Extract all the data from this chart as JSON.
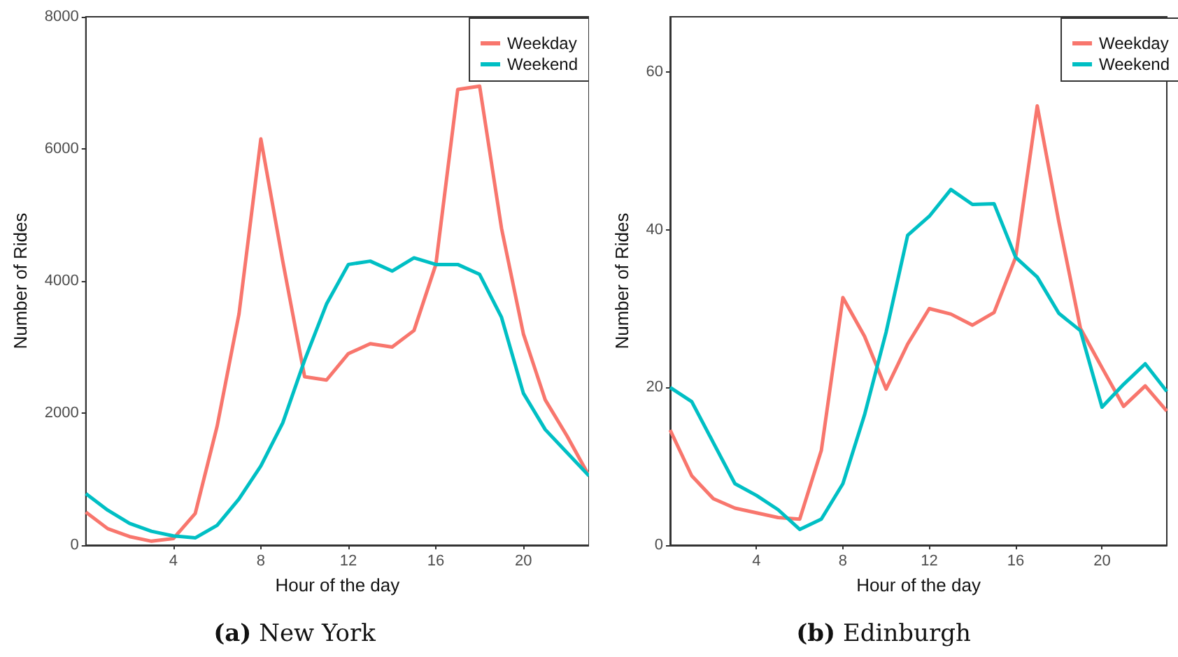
{
  "chart_data": [
    {
      "type": "line",
      "title": "(a) New York",
      "xlabel": "Hour of the day",
      "ylabel": "Number of Rides",
      "x": [
        0,
        1,
        2,
        3,
        4,
        5,
        6,
        7,
        8,
        9,
        10,
        11,
        12,
        13,
        14,
        15,
        16,
        17,
        18,
        19,
        20,
        21,
        22,
        23
      ],
      "xlim": [
        0,
        23
      ],
      "xticks": [
        4,
        8,
        12,
        16,
        20
      ],
      "ylim": [
        0,
        8000
      ],
      "yticks": [
        0,
        2000,
        4000,
        6000,
        8000
      ],
      "grid": false,
      "legend": "top right",
      "marker": "none",
      "line_style": "solid",
      "series": [
        {
          "name": "Weekday",
          "color": "#f8766d",
          "values": [
            500,
            250,
            130,
            60,
            100,
            480,
            1800,
            3500,
            6150,
            4300,
            2550,
            2500,
            2900,
            3050,
            3000,
            3250,
            4250,
            6900,
            6950,
            4800,
            3200,
            2200,
            1650,
            1050
          ]
        },
        {
          "name": "Weekend",
          "color": "#00bfc4",
          "values": [
            780,
            530,
            330,
            210,
            140,
            110,
            300,
            700,
            1200,
            1850,
            2800,
            3650,
            4250,
            4300,
            4150,
            4350,
            4250,
            4250,
            4100,
            3450,
            2300,
            1750,
            1400,
            1050
          ]
        }
      ]
    },
    {
      "type": "line",
      "title": "(b) Edinburgh",
      "xlabel": "Hour of the day",
      "ylabel": "Number of Rides",
      "x": [
        0,
        1,
        2,
        3,
        4,
        5,
        6,
        7,
        8,
        9,
        10,
        11,
        12,
        13,
        14,
        15,
        16,
        17,
        18,
        19,
        20,
        21,
        22,
        23
      ],
      "xlim": [
        0,
        23
      ],
      "xticks": [
        4,
        8,
        12,
        16,
        20
      ],
      "ylim": [
        0,
        67
      ],
      "yticks": [
        0,
        20,
        40,
        60
      ],
      "grid": false,
      "legend": "top right",
      "marker": "none",
      "line_style": "solid",
      "series": [
        {
          "name": "Weekday",
          "color": "#f8766d",
          "values": [
            14.6,
            8.8,
            5.9,
            4.7,
            4.1,
            3.5,
            3.3,
            12,
            31.4,
            26.5,
            19.8,
            25.5,
            30,
            29.3,
            27.9,
            29.5,
            36.5,
            55.7,
            41,
            27.5,
            22.5,
            17.6,
            20.2,
            17
          ]
        },
        {
          "name": "Weekend",
          "color": "#00bfc4",
          "values": [
            20,
            18.2,
            13,
            7.8,
            6.3,
            4.5,
            2,
            3.3,
            7.8,
            16.5,
            27,
            39.3,
            41.7,
            45.1,
            43.2,
            43.3,
            36.5,
            34,
            29.4,
            27.2,
            17.5,
            20.4,
            23,
            19.5
          ]
        }
      ]
    }
  ]
}
